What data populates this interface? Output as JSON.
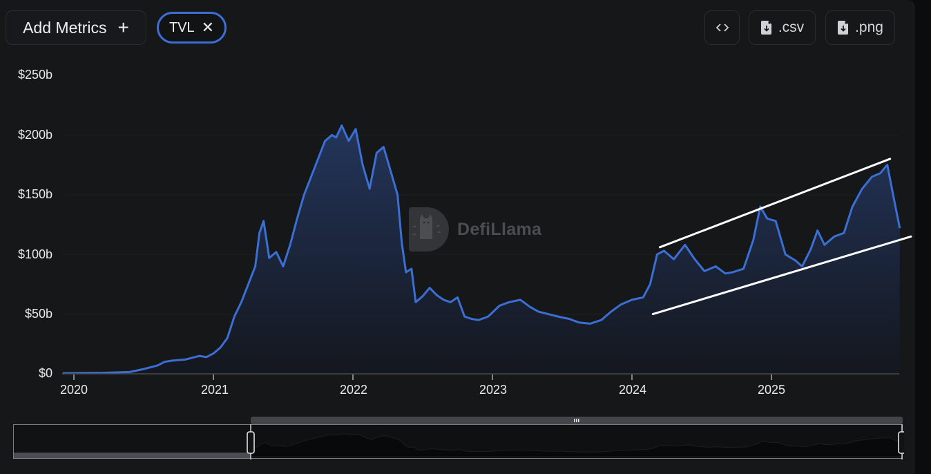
{
  "toolbar": {
    "add_metrics_label": "Add Metrics",
    "add_metrics_icon": "plus-icon",
    "active_metric": "TVL",
    "remove_metric_icon": "close-icon",
    "embed_label": "<>",
    "csv_label": ".csv",
    "png_label": ".png",
    "download_icon": "file-download-icon"
  },
  "watermark": {
    "text": "DefiLlama",
    "logo": "llama-logo-icon"
  },
  "colors": {
    "line": "#3b6fd4",
    "area_top": "#24375f",
    "area_bottom": "#14171f",
    "background": "#161719",
    "chip_border": "#3b6fd4",
    "trendlines": "#ffffff"
  },
  "chart_data": {
    "type": "area",
    "title": "",
    "xlabel": "",
    "ylabel": "",
    "series": [
      {
        "name": "TVL",
        "unit": "USD billions"
      }
    ],
    "y_ticks": [
      "$250b",
      "$200b",
      "$150b",
      "$100b",
      "$50b",
      "$0"
    ],
    "x_ticks": [
      "2020",
      "2021",
      "2022",
      "2023",
      "2024",
      "2025"
    ],
    "ylim": [
      0,
      250
    ],
    "grid": "horizontal",
    "legend": "none",
    "x": [
      2019.92,
      2020.0,
      2020.2,
      2020.4,
      2020.5,
      2020.6,
      2020.65,
      2020.7,
      2020.8,
      2020.9,
      2020.95,
      2021.0,
      2021.05,
      2021.1,
      2021.15,
      2021.2,
      2021.25,
      2021.3,
      2021.33,
      2021.36,
      2021.4,
      2021.45,
      2021.5,
      2021.55,
      2021.6,
      2021.65,
      2021.7,
      2021.75,
      2021.8,
      2021.85,
      2021.88,
      2021.92,
      2021.97,
      2022.02,
      2022.07,
      2022.12,
      2022.17,
      2022.22,
      2022.27,
      2022.32,
      2022.35,
      2022.38,
      2022.42,
      2022.45,
      2022.5,
      2022.55,
      2022.6,
      2022.65,
      2022.7,
      2022.75,
      2022.8,
      2022.85,
      2022.9,
      2022.97,
      2023.05,
      2023.12,
      2023.2,
      2023.27,
      2023.33,
      2023.4,
      2023.47,
      2023.55,
      2023.62,
      2023.7,
      2023.78,
      2023.85,
      2023.92,
      2024.0,
      2024.08,
      2024.13,
      2024.18,
      2024.23,
      2024.3,
      2024.38,
      2024.45,
      2024.52,
      2024.6,
      2024.67,
      2024.72,
      2024.8,
      2024.87,
      2024.92,
      2024.97,
      2025.03,
      2025.1,
      2025.17,
      2025.22,
      2025.28,
      2025.33,
      2025.38,
      2025.45,
      2025.52,
      2025.58,
      2025.65,
      2025.72,
      2025.78,
      2025.83,
      2025.88,
      2025.92
    ],
    "values": [
      0.5,
      0.6,
      0.8,
      1.5,
      4,
      7,
      10,
      11,
      12,
      15,
      14,
      17,
      22,
      30,
      48,
      60,
      75,
      90,
      118,
      128,
      97,
      102,
      90,
      108,
      130,
      150,
      165,
      180,
      195,
      200,
      198,
      208,
      195,
      205,
      175,
      155,
      185,
      190,
      170,
      150,
      110,
      85,
      88,
      60,
      65,
      72,
      66,
      62,
      60,
      64,
      48,
      46,
      45,
      48,
      57,
      60,
      62,
      56,
      52,
      50,
      48,
      46,
      43,
      42,
      45,
      52,
      58,
      62,
      64,
      75,
      100,
      103,
      96,
      108,
      96,
      86,
      90,
      84,
      85,
      88,
      112,
      140,
      130,
      128,
      100,
      95,
      90,
      104,
      120,
      108,
      115,
      118,
      140,
      155,
      165,
      168,
      175,
      145,
      122
    ]
  },
  "annotations": {
    "trend_channel": "ascending-channel-drawn-lines",
    "upper_line": {
      "from": [
        2024.2,
        106
      ],
      "to": [
        2025.85,
        180
      ]
    },
    "lower_line": {
      "from": [
        2024.15,
        50
      ],
      "to": [
        2026.0,
        115
      ]
    }
  },
  "range_slider": {
    "handle_left_icon": "slider-handle-icon",
    "handle_right_icon": "slider-handle-icon",
    "drag_grip_icon": "grip-icon"
  }
}
